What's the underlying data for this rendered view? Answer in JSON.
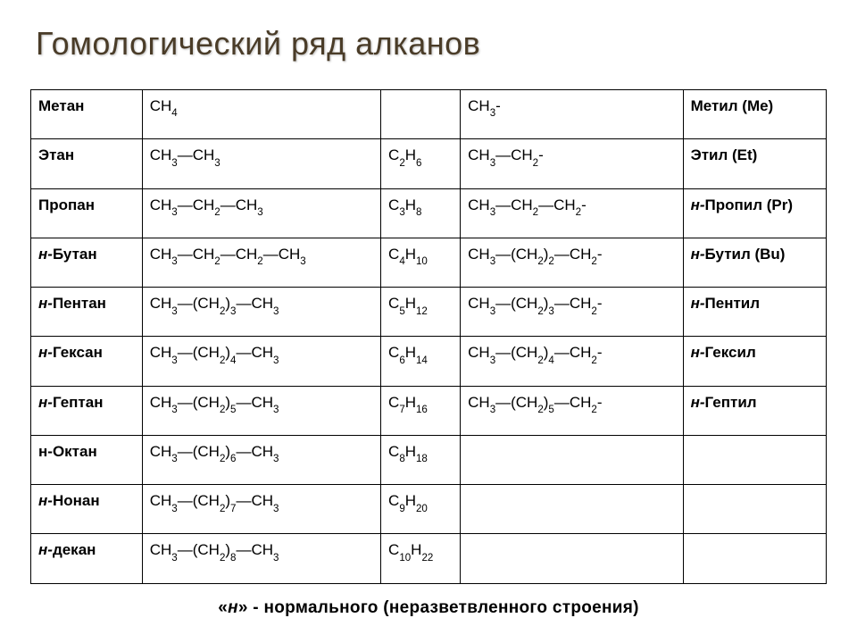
{
  "title": "Гомологический ряд алканов",
  "footnote_prefix": "«",
  "footnote_n": "н",
  "footnote_suffix": "» - нормального (неразветвленного строения)",
  "table": {
    "border_color": "#000000",
    "rows": [
      {
        "name": "Метан",
        "name_italic": false,
        "struct": {
          "plain": "CH",
          "parts": [
            [
              "CH",
              "4"
            ]
          ]
        },
        "mol": "",
        "radical_struct": {
          "parts": [
            [
              "CH",
              "3",
              "-"
            ]
          ]
        },
        "radical_name": "Метил (Me)",
        "radical_italic": false
      },
      {
        "name": "Этан",
        "name_italic": false,
        "struct": {
          "parts": [
            [
              "CH",
              "3",
              "—CH",
              "3"
            ]
          ]
        },
        "mol": {
          "parts": [
            [
              "C",
              "2",
              "H",
              "6"
            ]
          ]
        },
        "radical_struct": {
          "parts": [
            [
              "CH",
              "3",
              "—CH",
              "2",
              "-"
            ]
          ]
        },
        "radical_name": "Этил (Et)",
        "radical_italic": false
      },
      {
        "name": "Пропан",
        "name_italic": false,
        "struct": {
          "parts": [
            [
              "CH",
              "3",
              "—CH",
              "2",
              "—CH",
              "3"
            ]
          ]
        },
        "mol": {
          "parts": [
            [
              "C",
              "3",
              "H",
              "8"
            ]
          ]
        },
        "radical_struct": {
          "parts": [
            [
              "CH",
              "3",
              "—CH",
              "2",
              "—CH",
              "2",
              "-"
            ]
          ]
        },
        "radical_name_html": "<span class='ital'>н-</span>Пропил (Pr)",
        "radical_italic": true
      },
      {
        "name_html": "<span class='ital'>н-</span>Бутан",
        "struct": {
          "parts": [
            [
              "CH",
              "3",
              "—CH",
              "2",
              "—CH",
              "2",
              "—CH",
              "3"
            ]
          ]
        },
        "mol": {
          "parts": [
            [
              "C",
              "4",
              "H",
              "10"
            ]
          ]
        },
        "radical_struct": {
          "parts": [
            [
              "CH",
              "3",
              "—(CH",
              "2",
              ")",
              "2",
              "—CH",
              "2",
              "-"
            ]
          ]
        },
        "radical_name_html": "<span class='ital'>н-</span>Бутил (Bu)"
      },
      {
        "name_html": "<span class='ital'>н-</span>Пентан",
        "struct": {
          "parts": [
            [
              "CH",
              "3",
              "—(CH",
              "2",
              ")",
              "3",
              "—CH",
              "3"
            ]
          ]
        },
        "mol": {
          "parts": [
            [
              "C",
              "5",
              "H",
              "12"
            ]
          ]
        },
        "radical_struct": {
          "parts": [
            [
              "CH",
              "3",
              "—(CH",
              "2",
              ")",
              "3",
              "—CH",
              "2",
              "-"
            ]
          ]
        },
        "radical_name_html": "<span class='ital'>н-</span>Пентил"
      },
      {
        "name_html": "<span class='ital'>н-</span>Гексан",
        "struct": {
          "parts": [
            [
              "CH",
              "3",
              "—(CH",
              "2",
              ")",
              "4",
              "—CH",
              "3"
            ]
          ]
        },
        "mol": {
          "parts": [
            [
              "C",
              "6",
              "H",
              "14"
            ]
          ]
        },
        "radical_struct": {
          "parts": [
            [
              "CH",
              "3",
              "—(CH",
              "2",
              ")",
              "4",
              "—CH",
              "2",
              "-"
            ]
          ]
        },
        "radical_name_html": "<span class='ital'>н-</span>Гексил"
      },
      {
        "name_html": "<span class='ital'>н-</span>Гептан",
        "struct": {
          "parts": [
            [
              "CH",
              "3",
              "—(CH",
              "2",
              ")",
              "5",
              "—CH",
              "3"
            ]
          ]
        },
        "mol": {
          "parts": [
            [
              "C",
              "7",
              "H",
              "16"
            ]
          ]
        },
        "radical_struct": {
          "parts": [
            [
              "CH",
              "3",
              "—(CH",
              "2",
              ")",
              "5",
              "—CH",
              "2",
              "-"
            ]
          ]
        },
        "radical_name_html": "<span class='ital'>н-</span>Гептил"
      },
      {
        "name_html": "<span>н-</span>Октан",
        "struct": {
          "parts": [
            [
              "CH",
              "3",
              "—(CH",
              "2",
              ")",
              "6",
              "—CH",
              "3"
            ]
          ]
        },
        "mol": {
          "parts": [
            [
              "C",
              "8",
              "H",
              "18"
            ]
          ]
        },
        "radical_struct": "",
        "radical_name_html": ""
      },
      {
        "name_html": "<span class='ital'>н-</span>Нонан",
        "struct": {
          "parts": [
            [
              "CH",
              "3",
              "—(CH",
              "2",
              ")",
              "7",
              "—CH",
              "3"
            ]
          ]
        },
        "mol": {
          "parts": [
            [
              "C",
              "9",
              "H",
              "20"
            ]
          ]
        },
        "radical_struct": "",
        "radical_name_html": ""
      },
      {
        "name_html": "<span class='ital'>н-</span>декан",
        "struct": {
          "parts": [
            [
              "CH",
              "3",
              "—(CH",
              "2",
              ")",
              "8",
              "—CH",
              "3"
            ]
          ]
        },
        "mol": {
          "parts": [
            [
              "C",
              "10",
              "H",
              "22"
            ]
          ]
        },
        "radical_struct": "",
        "radical_name_html": ""
      }
    ]
  }
}
